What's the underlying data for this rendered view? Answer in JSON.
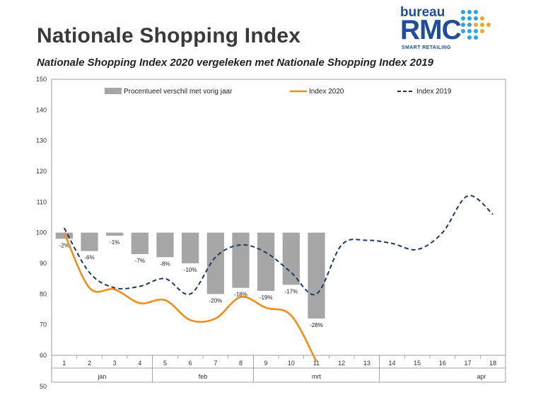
{
  "header": {
    "title": "Nationale Shopping Index",
    "subtitle": "Nationale Shopping Index 2020 vergeleken met Nationale Shopping Index 2019"
  },
  "logo": {
    "top_text": "bureau",
    "main_text": "RMC",
    "tagline": "SMART RETAILING",
    "colors": {
      "primary": "#1e4e9c",
      "dot_blue": "#2aa4e3",
      "dot_orange": "#f5a623"
    }
  },
  "chart_data": {
    "type": "bar+line",
    "x": [
      1,
      2,
      3,
      4,
      5,
      6,
      7,
      8,
      9,
      10,
      11,
      12,
      13,
      14,
      15,
      16,
      17,
      18
    ],
    "x_tick_labels": [
      "1",
      "2",
      "3",
      "4",
      "5",
      "6",
      "7",
      "8",
      "9",
      "10",
      "11",
      "12",
      "13",
      "14",
      "15",
      "16",
      "17",
      "18"
    ],
    "month_groups": [
      {
        "label": "jan",
        "from": 1,
        "to": 4
      },
      {
        "label": "feb",
        "from": 5,
        "to": 8
      },
      {
        "label": "mrt",
        "from": 9,
        "to": 13
      },
      {
        "label": "apr",
        "from": 14,
        "to": 18
      }
    ],
    "ylim": [
      50,
      150
    ],
    "y_ticks": [
      50,
      60,
      70,
      80,
      90,
      100,
      110,
      120,
      130,
      140,
      150
    ],
    "baseline": 100,
    "series": [
      {
        "name": "Procentueel verschil met vorig jaar",
        "kind": "bar",
        "color": "#a6a6a6",
        "x": [
          1,
          2,
          3,
          4,
          5,
          6,
          7,
          8,
          9,
          10,
          11
        ],
        "values": [
          -2,
          -6,
          -1,
          -7,
          -8,
          -10,
          -20,
          -18,
          -19,
          -17,
          -28
        ],
        "labels": [
          "-2%",
          "-6%",
          "-1%",
          "-7%",
          "-8%",
          "-10%",
          "-20%",
          "-18%",
          "-19%",
          "-17%",
          "-28%"
        ]
      },
      {
        "name": "Index 2020",
        "kind": "line",
        "color": "#f28c1a",
        "x": [
          1,
          2,
          3,
          4,
          5,
          6,
          7,
          8,
          9,
          10,
          11
        ],
        "values": [
          100,
          82,
          81.5,
          77,
          78,
          71.5,
          72,
          79,
          75.5,
          73,
          58
        ]
      },
      {
        "name": "Index 2019",
        "kind": "dashed-line",
        "color": "#1f3864",
        "x": [
          1,
          2,
          3,
          4,
          5,
          6,
          7,
          8,
          9,
          10,
          11,
          12,
          13,
          14,
          15,
          16,
          17,
          18
        ],
        "values": [
          101.5,
          87,
          82,
          82.5,
          85,
          80,
          92,
          96,
          93.5,
          87,
          80,
          96,
          97.5,
          96.5,
          94.5,
          100,
          112,
          106
        ]
      }
    ],
    "legend": [
      "Procentueel verschil met vorig jaar",
      "Index 2020",
      "Index 2019"
    ],
    "legend_position": "top",
    "grid": false
  }
}
